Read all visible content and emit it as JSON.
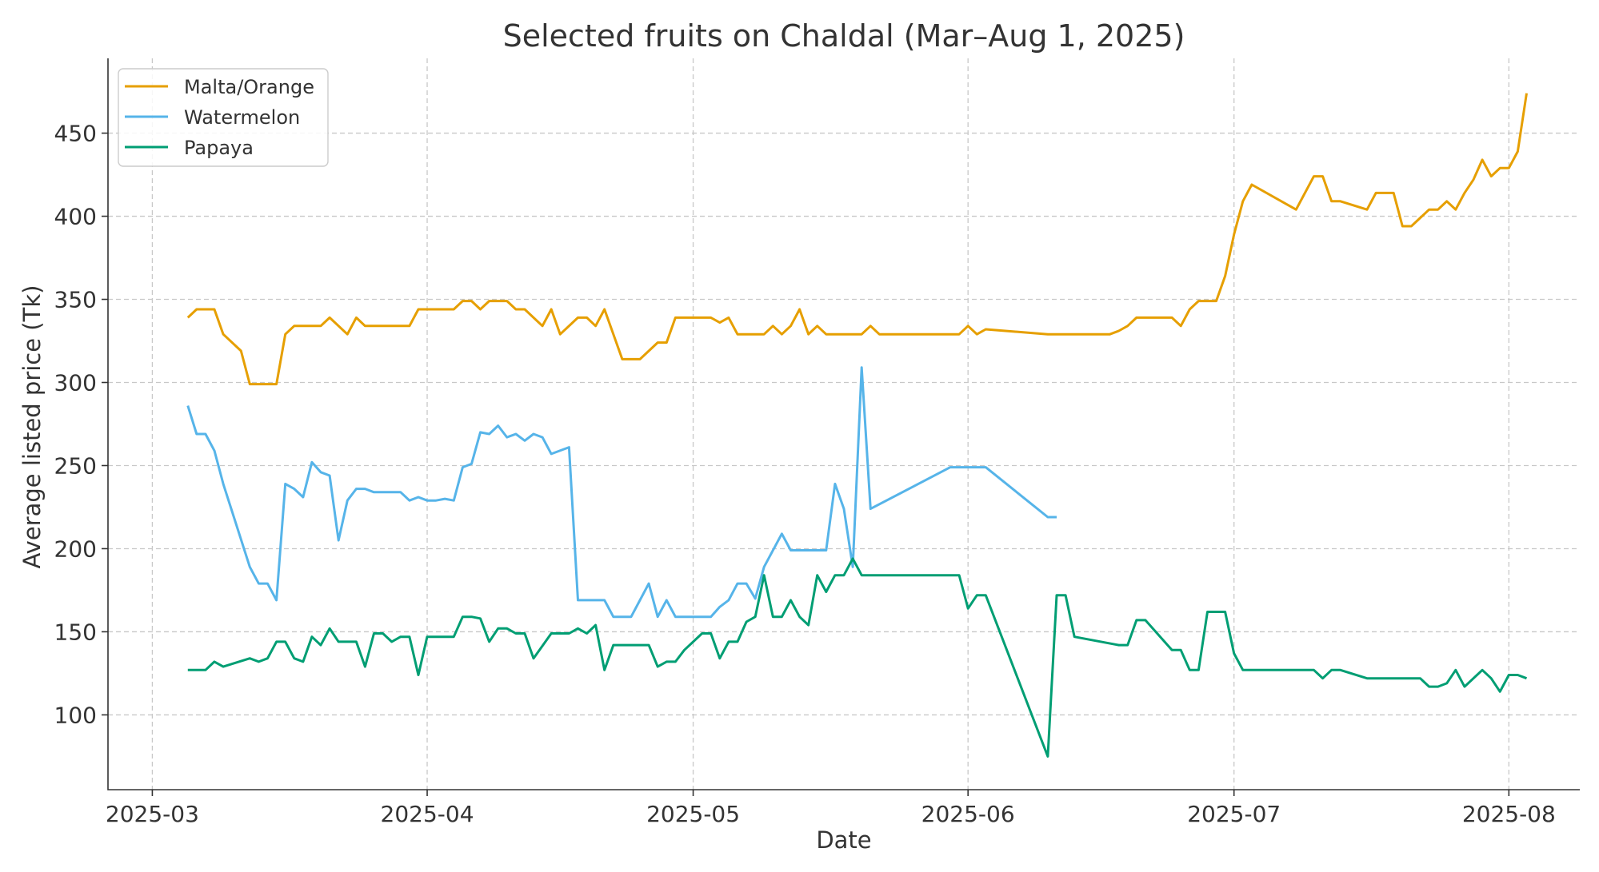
{
  "chart_data": {
    "type": "line",
    "title": "Selected fruits on Chaldal (Mar–Aug 1, 2025)",
    "xlabel": "Date",
    "ylabel": "Average listed price (Tk)",
    "xlim": [
      "2025-02-24",
      "2025-08-09"
    ],
    "ylim": [
      55,
      495
    ],
    "x_ticks": [
      {
        "value": "2025-03-01",
        "label": "2025-03"
      },
      {
        "value": "2025-04-01",
        "label": "2025-04"
      },
      {
        "value": "2025-05-01",
        "label": "2025-05"
      },
      {
        "value": "2025-06-01",
        "label": "2025-06"
      },
      {
        "value": "2025-07-01",
        "label": "2025-07"
      },
      {
        "value": "2025-08-01",
        "label": "2025-08"
      }
    ],
    "y_ticks": [
      100,
      150,
      200,
      250,
      300,
      350,
      400,
      450
    ],
    "grid": true,
    "legend_position": "top-left",
    "series": [
      {
        "name": "Malta/Orange",
        "color": "#E69F00",
        "points": [
          [
            "2025-03-05",
            339
          ],
          [
            "2025-03-06",
            344
          ],
          [
            "2025-03-08",
            344
          ],
          [
            "2025-03-09",
            329
          ],
          [
            "2025-03-11",
            319
          ],
          [
            "2025-03-12",
            299
          ],
          [
            "2025-03-15",
            299
          ],
          [
            "2025-03-16",
            329
          ],
          [
            "2025-03-17",
            334
          ],
          [
            "2025-03-20",
            334
          ],
          [
            "2025-03-21",
            339
          ],
          [
            "2025-03-23",
            329
          ],
          [
            "2025-03-24",
            339
          ],
          [
            "2025-03-25",
            334
          ],
          [
            "2025-03-30",
            334
          ],
          [
            "2025-03-31",
            344
          ],
          [
            "2025-04-04",
            344
          ],
          [
            "2025-04-05",
            349
          ],
          [
            "2025-04-06",
            349
          ],
          [
            "2025-04-07",
            344
          ],
          [
            "2025-04-08",
            349
          ],
          [
            "2025-04-10",
            349
          ],
          [
            "2025-04-11",
            344
          ],
          [
            "2025-04-12",
            344
          ],
          [
            "2025-04-14",
            334
          ],
          [
            "2025-04-15",
            344
          ],
          [
            "2025-04-16",
            329
          ],
          [
            "2025-04-18",
            339
          ],
          [
            "2025-04-19",
            339
          ],
          [
            "2025-04-20",
            334
          ],
          [
            "2025-04-21",
            344
          ],
          [
            "2025-04-23",
            314
          ],
          [
            "2025-04-25",
            314
          ],
          [
            "2025-04-27",
            324
          ],
          [
            "2025-04-28",
            324
          ],
          [
            "2025-04-29",
            339
          ],
          [
            "2025-05-03",
            339
          ],
          [
            "2025-05-04",
            336
          ],
          [
            "2025-05-05",
            339
          ],
          [
            "2025-05-06",
            329
          ],
          [
            "2025-05-09",
            329
          ],
          [
            "2025-05-10",
            334
          ],
          [
            "2025-05-11",
            329
          ],
          [
            "2025-05-12",
            334
          ],
          [
            "2025-05-13",
            344
          ],
          [
            "2025-05-14",
            329
          ],
          [
            "2025-05-15",
            334
          ],
          [
            "2025-05-16",
            329
          ],
          [
            "2025-05-19",
            329
          ],
          [
            "2025-05-20",
            329
          ],
          [
            "2025-05-21",
            334
          ],
          [
            "2025-05-22",
            329
          ],
          [
            "2025-05-31",
            329
          ],
          [
            "2025-06-01",
            334
          ],
          [
            "2025-06-02",
            329
          ],
          [
            "2025-06-03",
            332
          ],
          [
            "2025-06-10",
            329
          ],
          [
            "2025-06-17",
            329
          ],
          [
            "2025-06-18",
            331
          ],
          [
            "2025-06-19",
            334
          ],
          [
            "2025-06-20",
            339
          ],
          [
            "2025-06-24",
            339
          ],
          [
            "2025-06-25",
            334
          ],
          [
            "2025-06-26",
            344
          ],
          [
            "2025-06-27",
            349
          ],
          [
            "2025-06-29",
            349
          ],
          [
            "2025-06-30",
            364
          ],
          [
            "2025-07-01",
            389
          ],
          [
            "2025-07-02",
            409
          ],
          [
            "2025-07-03",
            419
          ],
          [
            "2025-07-08",
            404
          ],
          [
            "2025-07-10",
            424
          ],
          [
            "2025-07-11",
            424
          ],
          [
            "2025-07-12",
            409
          ],
          [
            "2025-07-13",
            409
          ],
          [
            "2025-07-16",
            404
          ],
          [
            "2025-07-17",
            414
          ],
          [
            "2025-07-19",
            414
          ],
          [
            "2025-07-20",
            394
          ],
          [
            "2025-07-21",
            394
          ],
          [
            "2025-07-23",
            404
          ],
          [
            "2025-07-24",
            404
          ],
          [
            "2025-07-25",
            409
          ],
          [
            "2025-07-26",
            404
          ],
          [
            "2025-07-27",
            414
          ],
          [
            "2025-07-28",
            422
          ],
          [
            "2025-07-29",
            434
          ],
          [
            "2025-07-30",
            424
          ],
          [
            "2025-07-31",
            429
          ],
          [
            "2025-08-01",
            429
          ],
          [
            "2025-08-02",
            439
          ],
          [
            "2025-08-03",
            474
          ]
        ]
      },
      {
        "name": "Watermelon",
        "color": "#56B4E9",
        "points": [
          [
            "2025-03-05",
            286
          ],
          [
            "2025-03-06",
            269
          ],
          [
            "2025-03-07",
            269
          ],
          [
            "2025-03-08",
            259
          ],
          [
            "2025-03-09",
            239
          ],
          [
            "2025-03-12",
            189
          ],
          [
            "2025-03-13",
            179
          ],
          [
            "2025-03-14",
            179
          ],
          [
            "2025-03-15",
            169
          ],
          [
            "2025-03-16",
            239
          ],
          [
            "2025-03-17",
            236
          ],
          [
            "2025-03-18",
            231
          ],
          [
            "2025-03-19",
            252
          ],
          [
            "2025-03-20",
            246
          ],
          [
            "2025-03-21",
            244
          ],
          [
            "2025-03-22",
            205
          ],
          [
            "2025-03-23",
            229
          ],
          [
            "2025-03-24",
            236
          ],
          [
            "2025-03-25",
            236
          ],
          [
            "2025-03-26",
            234
          ],
          [
            "2025-03-29",
            234
          ],
          [
            "2025-03-30",
            229
          ],
          [
            "2025-03-31",
            231
          ],
          [
            "2025-04-01",
            229
          ],
          [
            "2025-04-02",
            229
          ],
          [
            "2025-04-03",
            230
          ],
          [
            "2025-04-04",
            229
          ],
          [
            "2025-04-05",
            249
          ],
          [
            "2025-04-06",
            251
          ],
          [
            "2025-04-07",
            270
          ],
          [
            "2025-04-08",
            269
          ],
          [
            "2025-04-09",
            274
          ],
          [
            "2025-04-10",
            267
          ],
          [
            "2025-04-11",
            269
          ],
          [
            "2025-04-12",
            265
          ],
          [
            "2025-04-13",
            269
          ],
          [
            "2025-04-14",
            267
          ],
          [
            "2025-04-15",
            257
          ],
          [
            "2025-04-17",
            261
          ],
          [
            "2025-04-18",
            169
          ],
          [
            "2025-04-21",
            169
          ],
          [
            "2025-04-22",
            159
          ],
          [
            "2025-04-24",
            159
          ],
          [
            "2025-04-26",
            179
          ],
          [
            "2025-04-27",
            159
          ],
          [
            "2025-04-28",
            169
          ],
          [
            "2025-04-29",
            159
          ],
          [
            "2025-05-03",
            159
          ],
          [
            "2025-05-04",
            165
          ],
          [
            "2025-05-05",
            169
          ],
          [
            "2025-05-06",
            179
          ],
          [
            "2025-05-07",
            179
          ],
          [
            "2025-05-08",
            170
          ],
          [
            "2025-05-09",
            189
          ],
          [
            "2025-05-11",
            209
          ],
          [
            "2025-05-12",
            199
          ],
          [
            "2025-05-16",
            199
          ],
          [
            "2025-05-17",
            239
          ],
          [
            "2025-05-18",
            224
          ],
          [
            "2025-05-19",
            189
          ],
          [
            "2025-05-20",
            309
          ],
          [
            "2025-05-21",
            224
          ],
          [
            "2025-05-30",
            249
          ],
          [
            "2025-06-03",
            249
          ],
          [
            "2025-06-10",
            219
          ],
          [
            "2025-06-11",
            219
          ]
        ]
      },
      {
        "name": "Papaya",
        "color": "#009E73",
        "points": [
          [
            "2025-03-05",
            127
          ],
          [
            "2025-03-07",
            127
          ],
          [
            "2025-03-08",
            132
          ],
          [
            "2025-03-09",
            129
          ],
          [
            "2025-03-12",
            134
          ],
          [
            "2025-03-13",
            132
          ],
          [
            "2025-03-14",
            134
          ],
          [
            "2025-03-15",
            144
          ],
          [
            "2025-03-16",
            144
          ],
          [
            "2025-03-17",
            134
          ],
          [
            "2025-03-18",
            132
          ],
          [
            "2025-03-19",
            147
          ],
          [
            "2025-03-20",
            142
          ],
          [
            "2025-03-21",
            152
          ],
          [
            "2025-03-22",
            144
          ],
          [
            "2025-03-24",
            144
          ],
          [
            "2025-03-25",
            129
          ],
          [
            "2025-03-26",
            149
          ],
          [
            "2025-03-27",
            149
          ],
          [
            "2025-03-28",
            144
          ],
          [
            "2025-03-29",
            147
          ],
          [
            "2025-03-30",
            147
          ],
          [
            "2025-03-31",
            124
          ],
          [
            "2025-04-01",
            147
          ],
          [
            "2025-04-04",
            147
          ],
          [
            "2025-04-05",
            159
          ],
          [
            "2025-04-06",
            159
          ],
          [
            "2025-04-07",
            158
          ],
          [
            "2025-04-08",
            144
          ],
          [
            "2025-04-09",
            152
          ],
          [
            "2025-04-10",
            152
          ],
          [
            "2025-04-11",
            149
          ],
          [
            "2025-04-12",
            149
          ],
          [
            "2025-04-13",
            134
          ],
          [
            "2025-04-15",
            149
          ],
          [
            "2025-04-17",
            149
          ],
          [
            "2025-04-18",
            152
          ],
          [
            "2025-04-19",
            149
          ],
          [
            "2025-04-20",
            154
          ],
          [
            "2025-04-21",
            127
          ],
          [
            "2025-04-22",
            142
          ],
          [
            "2025-04-26",
            142
          ],
          [
            "2025-04-27",
            129
          ],
          [
            "2025-04-28",
            132
          ],
          [
            "2025-04-29",
            132
          ],
          [
            "2025-04-30",
            139
          ],
          [
            "2025-05-02",
            149
          ],
          [
            "2025-05-03",
            149
          ],
          [
            "2025-05-04",
            134
          ],
          [
            "2025-05-05",
            144
          ],
          [
            "2025-05-06",
            144
          ],
          [
            "2025-05-07",
            156
          ],
          [
            "2025-05-08",
            159
          ],
          [
            "2025-05-09",
            184
          ],
          [
            "2025-05-10",
            159
          ],
          [
            "2025-05-11",
            159
          ],
          [
            "2025-05-12",
            169
          ],
          [
            "2025-05-13",
            159
          ],
          [
            "2025-05-14",
            154
          ],
          [
            "2025-05-15",
            184
          ],
          [
            "2025-05-16",
            174
          ],
          [
            "2025-05-17",
            184
          ],
          [
            "2025-05-18",
            184
          ],
          [
            "2025-05-19",
            194
          ],
          [
            "2025-05-20",
            184
          ],
          [
            "2025-05-31",
            184
          ],
          [
            "2025-06-01",
            164
          ],
          [
            "2025-06-02",
            172
          ],
          [
            "2025-06-03",
            172
          ],
          [
            "2025-06-10",
            75
          ],
          [
            "2025-06-11",
            172
          ],
          [
            "2025-06-12",
            172
          ],
          [
            "2025-06-13",
            147
          ],
          [
            "2025-06-18",
            142
          ],
          [
            "2025-06-19",
            142
          ],
          [
            "2025-06-20",
            157
          ],
          [
            "2025-06-21",
            157
          ],
          [
            "2025-06-24",
            139
          ],
          [
            "2025-06-25",
            139
          ],
          [
            "2025-06-26",
            127
          ],
          [
            "2025-06-27",
            127
          ],
          [
            "2025-06-28",
            162
          ],
          [
            "2025-06-30",
            162
          ],
          [
            "2025-07-01",
            137
          ],
          [
            "2025-07-02",
            127
          ],
          [
            "2025-07-10",
            127
          ],
          [
            "2025-07-11",
            122
          ],
          [
            "2025-07-12",
            127
          ],
          [
            "2025-07-13",
            127
          ],
          [
            "2025-07-16",
            122
          ],
          [
            "2025-07-22",
            122
          ],
          [
            "2025-07-23",
            117
          ],
          [
            "2025-07-24",
            117
          ],
          [
            "2025-07-25",
            119
          ],
          [
            "2025-07-26",
            127
          ],
          [
            "2025-07-27",
            117
          ],
          [
            "2025-07-29",
            127
          ],
          [
            "2025-07-30",
            122
          ],
          [
            "2025-07-31",
            114
          ],
          [
            "2025-08-01",
            124
          ],
          [
            "2025-08-02",
            124
          ],
          [
            "2025-08-03",
            122
          ]
        ]
      }
    ]
  }
}
